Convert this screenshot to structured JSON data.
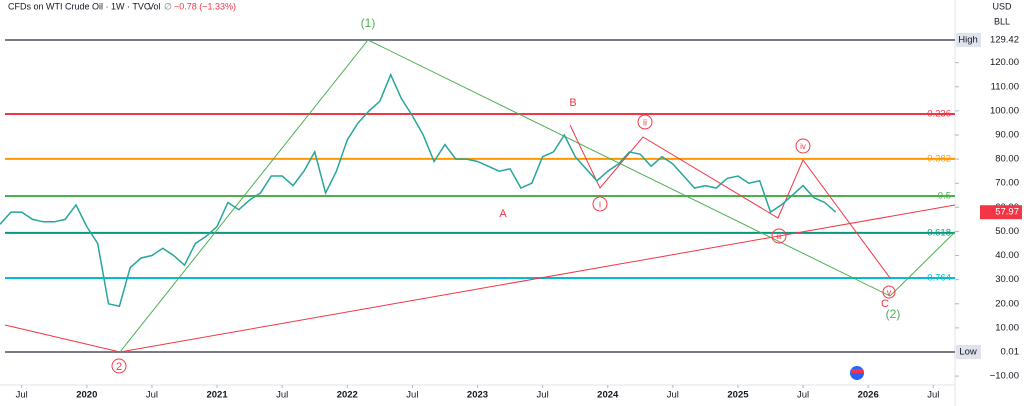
{
  "chart_data": {
    "type": "line",
    "title": "CFDs on WTI Crude Oil · 1W · TVC",
    "volume_label": "Vol",
    "volume_value": "∅",
    "change": "−0.78 (−1.33%)",
    "currency": "USD",
    "unit": "BLL",
    "color": "#26a69a",
    "x": [
      "2019-05",
      "2019-06",
      "2019-07",
      "2019-08",
      "2019-09",
      "2019-10",
      "2019-11",
      "2019-12",
      "2020-01",
      "2020-02",
      "2020-03",
      "2020-04",
      "2020-05",
      "2020-06",
      "2020-07",
      "2020-08",
      "2020-09",
      "2020-10",
      "2020-11",
      "2020-12",
      "2021-01",
      "2021-02",
      "2021-03",
      "2021-04",
      "2021-05",
      "2021-06",
      "2021-07",
      "2021-08",
      "2021-09",
      "2021-10",
      "2021-11",
      "2021-12",
      "2022-01",
      "2022-02",
      "2022-03",
      "2022-04",
      "2022-05",
      "2022-06",
      "2022-07",
      "2022-08",
      "2022-09",
      "2022-10",
      "2022-11",
      "2022-12",
      "2023-01",
      "2023-02",
      "2023-03",
      "2023-04",
      "2023-05",
      "2023-06",
      "2023-07",
      "2023-08",
      "2023-09",
      "2023-10",
      "2023-11",
      "2023-12",
      "2024-01",
      "2024-02",
      "2024-03",
      "2024-04",
      "2024-05",
      "2024-06",
      "2024-07",
      "2024-08",
      "2024-09",
      "2024-10",
      "2024-11",
      "2024-12",
      "2025-01",
      "2025-02",
      "2025-03",
      "2025-04",
      "2025-05",
      "2025-06",
      "2025-07",
      "2025-08",
      "2025-09",
      "2025-10"
    ],
    "values": [
      53,
      58,
      58,
      55,
      54,
      54,
      55,
      61,
      52,
      45,
      20,
      19,
      35,
      39,
      40,
      43,
      40,
      36,
      45,
      48,
      52,
      62,
      59,
      63,
      66,
      73,
      73,
      69,
      75,
      83,
      66,
      75,
      88,
      95,
      100,
      104,
      115,
      105,
      98,
      90,
      79,
      86,
      80,
      80,
      79,
      77,
      75,
      76,
      68,
      70,
      81,
      83,
      90,
      81,
      76,
      71,
      75,
      78,
      83,
      82,
      77,
      81,
      78,
      73,
      68,
      69,
      68,
      72,
      73,
      70,
      71,
      58,
      61,
      65,
      69,
      64,
      62,
      58
    ],
    "xlim": [
      "2019-05",
      "2026-09"
    ],
    "xticks": [
      {
        "value": "2019-07",
        "label": "Jul"
      },
      {
        "value": "2020-01",
        "label": "2020"
      },
      {
        "value": "2020-07",
        "label": "Jul"
      },
      {
        "value": "2021-01",
        "label": "2021"
      },
      {
        "value": "2021-07",
        "label": "Jul"
      },
      {
        "value": "2022-01",
        "label": "2022"
      },
      {
        "value": "2022-07",
        "label": "Jul"
      },
      {
        "value": "2023-01",
        "label": "2023"
      },
      {
        "value": "2023-07",
        "label": "Jul"
      },
      {
        "value": "2024-01",
        "label": "2024"
      },
      {
        "value": "2024-07",
        "label": "Jul"
      },
      {
        "value": "2025-01",
        "label": "2025"
      },
      {
        "value": "2025-07",
        "label": "Jul"
      },
      {
        "value": "2026-01",
        "label": "2026"
      },
      {
        "value": "2026-07",
        "label": "Jul"
      }
    ],
    "ylim": [
      -13.7,
      146
    ],
    "yticks": [
      {
        "value": 120,
        "label": "120.00"
      },
      {
        "value": 110,
        "label": "110.00"
      },
      {
        "value": 100,
        "label": "100.00"
      },
      {
        "value": 90,
        "label": "90.00"
      },
      {
        "value": 80,
        "label": "80.00"
      },
      {
        "value": 70,
        "label": "70.00"
      },
      {
        "value": 60,
        "label": "60.00"
      },
      {
        "value": 50,
        "label": "50.00"
      },
      {
        "value": 40,
        "label": "40.00"
      },
      {
        "value": 30,
        "label": "30.00"
      },
      {
        "value": 20,
        "label": "20.00"
      },
      {
        "value": 10,
        "label": "10.00"
      },
      {
        "value": -10,
        "label": "−10.00"
      }
    ],
    "fib_levels": [
      {
        "label": "High",
        "value": 129.42,
        "color": "#787b86"
      },
      {
        "ratio": 0.236,
        "value": 98.7,
        "color": "#f23645"
      },
      {
        "ratio": 0.382,
        "value": 80.1,
        "color": "#ff9800"
      },
      {
        "ratio": 0.5,
        "value": 64.7,
        "color": "#4caf50"
      },
      {
        "ratio": 0.618,
        "value": 49.4,
        "color": "#089981"
      },
      {
        "ratio": 0.764,
        "value": 30.7,
        "color": "#00bcd4"
      },
      {
        "label": "Low",
        "value": 0.01,
        "color": "#787b86"
      }
    ],
    "last_price": 57.97,
    "last_price_color": "#f23645",
    "annotations": [
      "(1)",
      "2",
      "B",
      "A",
      "i",
      "ii",
      "iii",
      "iv",
      "v",
      "C",
      "(2)"
    ]
  }
}
